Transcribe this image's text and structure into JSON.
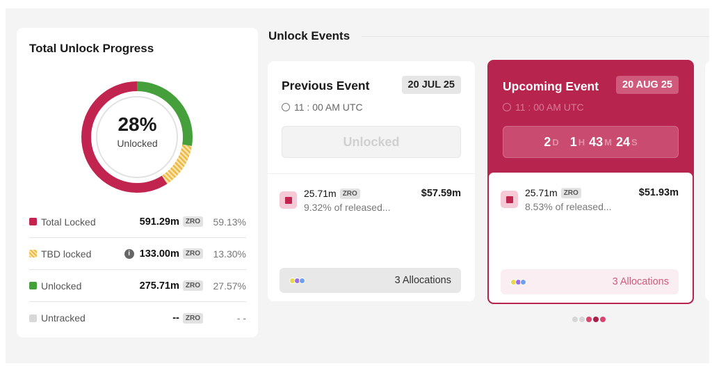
{
  "progress": {
    "title": "Total Unlock Progress",
    "percent_label": "28%",
    "center_label": "Unlocked",
    "segments": [
      {
        "name": "Unlocked",
        "percent": 27.57,
        "color": "#45a03c"
      },
      {
        "name": "TBD locked",
        "percent": 13.3,
        "color": "#f0c45a"
      },
      {
        "name": "Total Locked",
        "percent": 59.13,
        "color": "#c0244f"
      }
    ],
    "legend": [
      {
        "label": "Total Locked",
        "amount": "591.29m",
        "token": "ZRO",
        "percent": "59.13%",
        "color": "#c0244f"
      },
      {
        "label": "TBD locked",
        "amount": "133.00m",
        "token": "ZRO",
        "percent": "13.30%",
        "color": "#f0c45a",
        "info": "i"
      },
      {
        "label": "Unlocked",
        "amount": "275.71m",
        "token": "ZRO",
        "percent": "27.57%",
        "color": "#45a03c"
      },
      {
        "label": "Untracked",
        "amount": "--",
        "token": "ZRO",
        "percent": "- -",
        "color": "#d8d8d8"
      }
    ]
  },
  "events": {
    "title": "Unlock Events",
    "previous": {
      "title": "Previous Event",
      "date": "20 JUL 25",
      "time": "11 : 00 AM UTC",
      "status": "Unlocked",
      "amount": "25.71m",
      "token": "ZRO",
      "released": "9.32% of released...",
      "usd": "$57.59m",
      "allocations": "3 Allocations"
    },
    "upcoming": {
      "title": "Upcoming Event",
      "date": "20 AUG 25",
      "time": "11 : 00 AM UTC",
      "countdown": {
        "d": "2",
        "d_unit": "D",
        "h": "1",
        "h_unit": "H",
        "m": "43",
        "m_unit": "M",
        "s": "24",
        "s_unit": "S"
      },
      "amount": "25.71m",
      "token": "ZRO",
      "released": "8.53% of released...",
      "usd": "$51.93m",
      "allocations": "3 Allocations"
    }
  },
  "pagination": {
    "total": 5,
    "active_from": 2
  }
}
